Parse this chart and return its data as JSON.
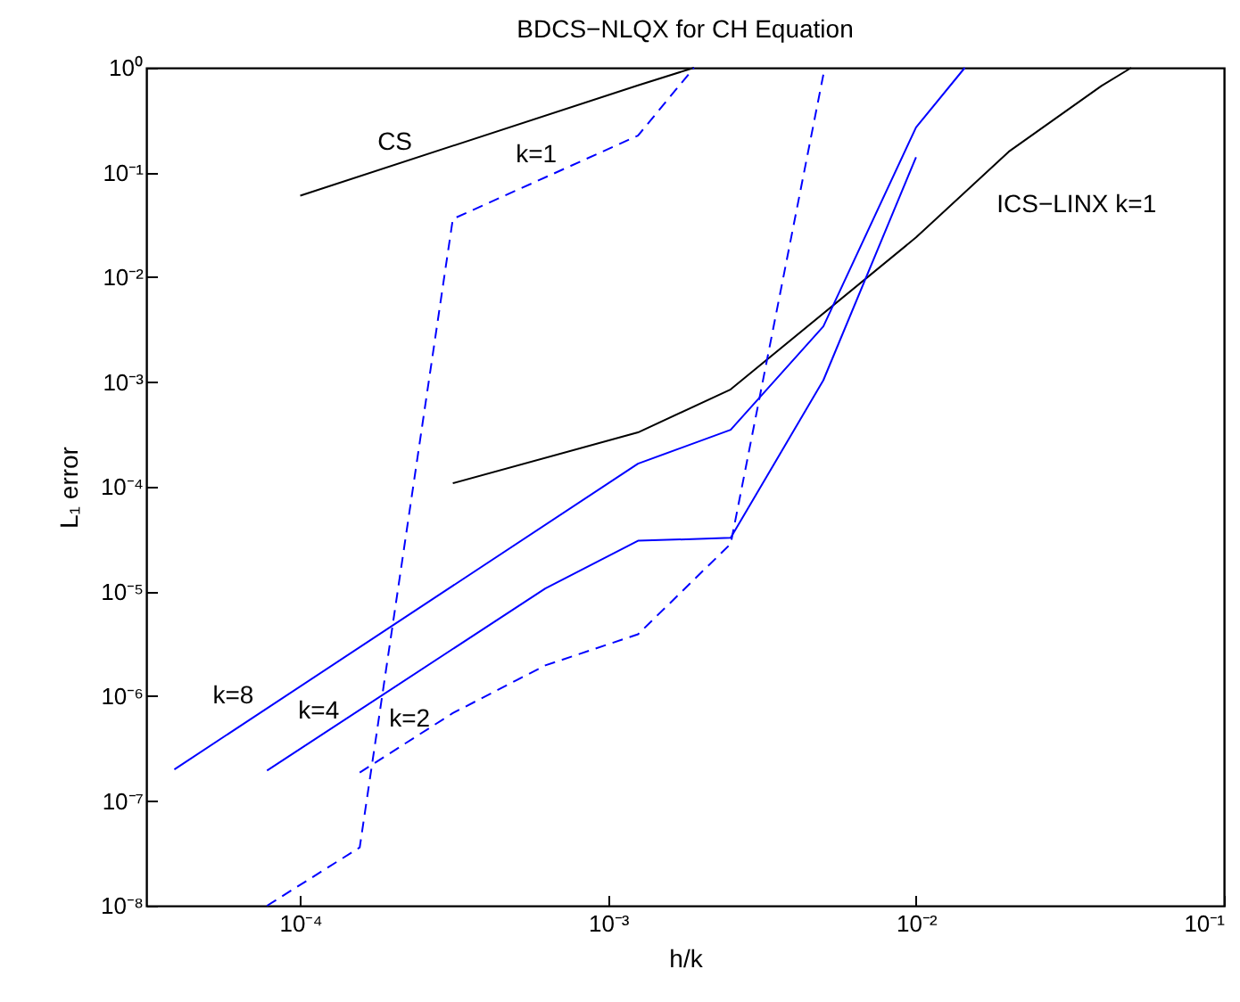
{
  "chart_data": {
    "type": "line",
    "title": "BDCS−NLQX for CH Equation",
    "xlabel": "h/k",
    "ylabel": "L₁ error",
    "log": "xy",
    "grid": false,
    "marker": "none",
    "xlim": [
      3.162e-05,
      0.1
    ],
    "ylim": [
      1e-08,
      1
    ],
    "xticks": [
      {
        "value": 0.0001,
        "label": "10⁻⁴"
      },
      {
        "value": 0.001,
        "label": "10⁻³"
      },
      {
        "value": 0.01,
        "label": "10⁻²"
      },
      {
        "value": 0.1,
        "label": "10⁻¹"
      }
    ],
    "yticks": [
      {
        "value": 1e-08,
        "label": "10⁻⁸"
      },
      {
        "value": 1e-07,
        "label": "10⁻⁷"
      },
      {
        "value": 1e-06,
        "label": "10⁻⁶"
      },
      {
        "value": 1e-05,
        "label": "10⁻⁵"
      },
      {
        "value": 0.0001,
        "label": "10⁻⁴"
      },
      {
        "value": 0.001,
        "label": "10⁻³"
      },
      {
        "value": 0.01,
        "label": "10⁻²"
      },
      {
        "value": 0.1,
        "label": "10⁻¹"
      },
      {
        "value": 1,
        "label": "10⁰"
      }
    ],
    "series": [
      {
        "name": "CS",
        "color": "#000000",
        "line_style": "solid",
        "x": [
          0.0001,
          0.00125,
          0.0019
        ],
        "values": [
          0.06,
          0.68,
          1
        ]
      },
      {
        "name": "k=1",
        "color": "#0000ff",
        "line_style": "dashed",
        "x": [
          7.8e-05,
          0.000156,
          0.000313,
          0.00125,
          0.0019
        ],
        "values": [
          1e-08,
          3.6e-08,
          0.036,
          0.225,
          1
        ]
      },
      {
        "name": "ICS−LINX k=1",
        "color": "#000000",
        "line_style": "solid",
        "x": [
          0.000313,
          0.00125,
          0.0025,
          0.01,
          0.02,
          0.04,
          0.05
        ],
        "values": [
          0.000108,
          0.00033,
          0.00085,
          0.024,
          0.158,
          0.67,
          1
        ]
      },
      {
        "name": "k=8",
        "color": "#0000ff",
        "line_style": "solid",
        "x": [
          3.9e-05,
          0.00125,
          0.0025,
          0.005,
          0.01,
          0.0144
        ],
        "values": [
          2e-07,
          0.000166,
          0.00035,
          0.0034,
          0.27,
          1
        ]
      },
      {
        "name": "k=4",
        "color": "#0000ff",
        "line_style": "solid",
        "x": [
          7.8e-05,
          0.000625,
          0.00125,
          0.0025,
          0.005,
          0.01
        ],
        "values": [
          1.95e-07,
          1.07e-05,
          3.05e-05,
          3.25e-05,
          0.00104,
          0.14
        ]
      },
      {
        "name": "k=2",
        "color": "#0000ff",
        "line_style": "dashed",
        "x": [
          0.000156,
          0.000313,
          0.000625,
          0.00125,
          0.0025,
          0.005
        ],
        "values": [
          1.87e-07,
          6.9e-07,
          1.97e-06,
          3.9e-06,
          2.85e-05,
          0.86
        ]
      }
    ]
  }
}
